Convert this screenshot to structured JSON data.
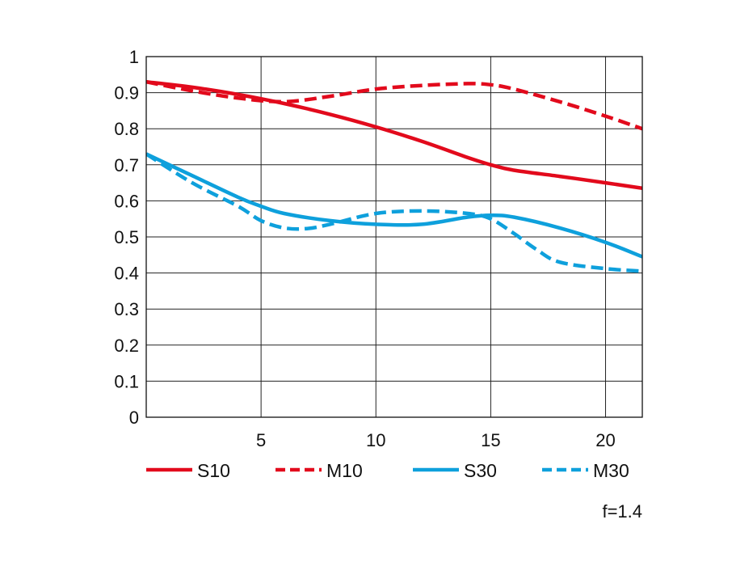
{
  "chart_data": {
    "type": "line",
    "title": "",
    "xlabel": "",
    "ylabel": "",
    "xlim": [
      0,
      21.6
    ],
    "ylim": [
      0,
      1
    ],
    "x_ticks": [
      5,
      10,
      15,
      20
    ],
    "x_tick_labels": [
      "5",
      "10",
      "15",
      "20"
    ],
    "y_ticks": [
      0,
      0.1,
      0.2,
      0.3,
      0.4,
      0.5,
      0.6,
      0.7,
      0.8,
      0.9,
      1
    ],
    "y_tick_labels": [
      "0",
      "0.1",
      "0.2",
      "0.3",
      "0.4",
      "0.5",
      "0.6",
      "0.7",
      "0.8",
      "0.9",
      "1"
    ],
    "grid": true,
    "legend_position": "bottom",
    "annotation": "f=1.4",
    "series": [
      {
        "name": "S10",
        "color": "#e20a1c",
        "dash": "solid",
        "x": [
          0,
          2,
          4,
          6,
          8,
          10,
          12,
          14,
          15,
          16,
          18,
          20,
          21.6
        ],
        "y": [
          0.93,
          0.915,
          0.895,
          0.87,
          0.84,
          0.805,
          0.765,
          0.72,
          0.7,
          0.685,
          0.668,
          0.65,
          0.635
        ]
      },
      {
        "name": "M10",
        "color": "#e20a1c",
        "dash": "dashed",
        "x": [
          0,
          2,
          4,
          6,
          8,
          10,
          12,
          14,
          15,
          16,
          18,
          20,
          21.6
        ],
        "y": [
          0.93,
          0.905,
          0.885,
          0.875,
          0.89,
          0.91,
          0.92,
          0.925,
          0.922,
          0.91,
          0.875,
          0.835,
          0.8
        ]
      },
      {
        "name": "S30",
        "color": "#0ea0dc",
        "dash": "solid",
        "x": [
          0,
          2,
          4,
          5,
          6,
          8,
          10,
          12,
          14,
          15,
          16,
          18,
          20,
          21.6
        ],
        "y": [
          0.73,
          0.67,
          0.61,
          0.585,
          0.565,
          0.545,
          0.535,
          0.535,
          0.555,
          0.56,
          0.555,
          0.525,
          0.485,
          0.445
        ]
      },
      {
        "name": "M30",
        "color": "#0ea0dc",
        "dash": "dashed",
        "x": [
          0,
          2,
          4,
          5,
          6,
          7,
          8,
          10,
          12,
          14,
          15,
          16,
          17,
          18,
          20,
          21.6
        ],
        "y": [
          0.73,
          0.65,
          0.585,
          0.545,
          0.525,
          0.523,
          0.535,
          0.565,
          0.572,
          0.565,
          0.55,
          0.51,
          0.465,
          0.43,
          0.412,
          0.405
        ]
      }
    ]
  }
}
